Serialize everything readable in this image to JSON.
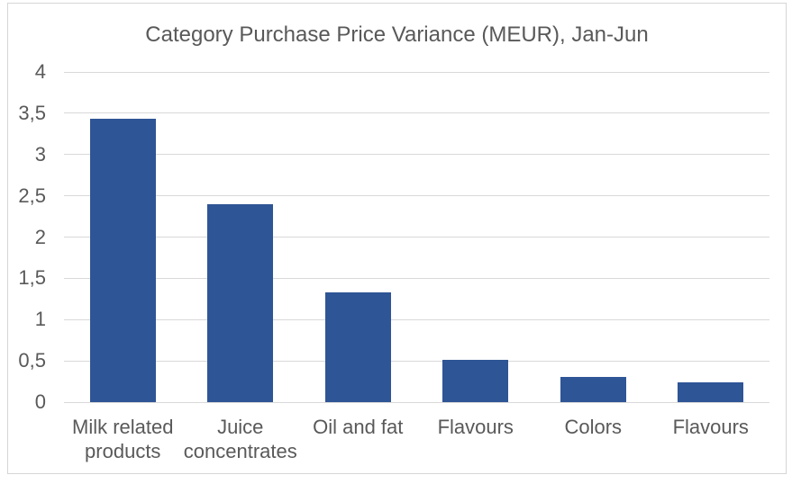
{
  "chart_data": {
    "type": "bar",
    "title": "Category Purchase Price Variance (MEUR), Jan-Jun",
    "categories": [
      "Milk related products",
      "Juice concentrates",
      "Oil and fat",
      "Flavours",
      "Colors",
      "Flavours"
    ],
    "values": [
      3.43,
      2.4,
      1.33,
      0.51,
      0.3,
      0.24
    ],
    "xlabel": "",
    "ylabel": "",
    "ylim": [
      0,
      4
    ],
    "ytick_step": 0.5,
    "yticks": [
      {
        "value": 0,
        "label": "0"
      },
      {
        "value": 0.5,
        "label": "0,5"
      },
      {
        "value": 1,
        "label": "1"
      },
      {
        "value": 1.5,
        "label": "1,5"
      },
      {
        "value": 2,
        "label": "2"
      },
      {
        "value": 2.5,
        "label": "2,5"
      },
      {
        "value": 3,
        "label": "3"
      },
      {
        "value": 3.5,
        "label": "3,5"
      },
      {
        "value": 4,
        "label": "4"
      }
    ],
    "decimal_separator": ",",
    "grid": true,
    "legend": false,
    "colors": {
      "bar": "#2E5596",
      "text": "#595959",
      "gridline": "#D9D9D9",
      "axis_line": "#D9D9D9",
      "frame_border": "#D6D6D6",
      "background": "#FFFFFF"
    }
  }
}
